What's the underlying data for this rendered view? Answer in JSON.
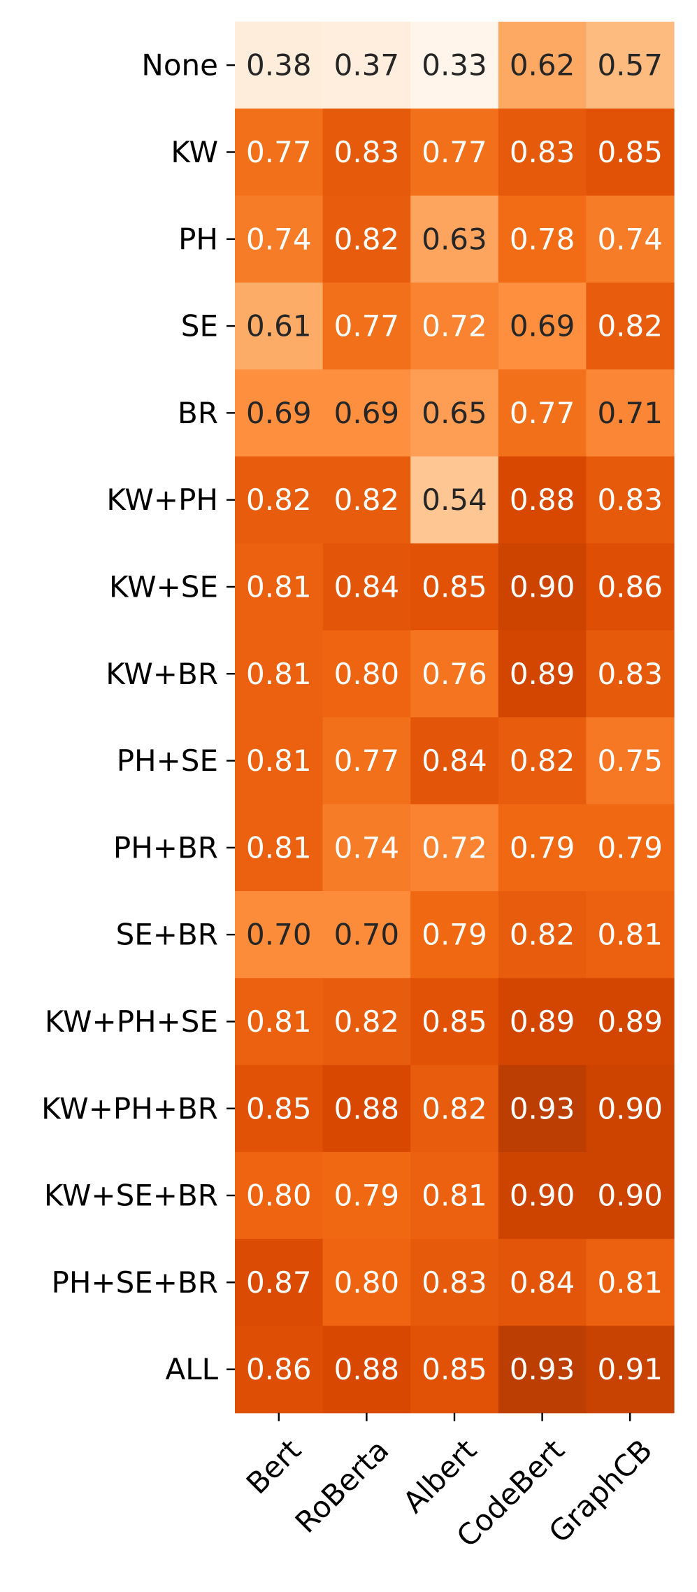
{
  "chart_data": {
    "type": "heatmap",
    "title": "",
    "xlabel": "",
    "ylabel": "",
    "columns": [
      "Bert",
      "RoBerta",
      "Albert",
      "CodeBert",
      "GraphCB"
    ],
    "rows": [
      "None",
      "KW",
      "PH",
      "SE",
      "BR",
      "KW+PH",
      "KW+SE",
      "KW+BR",
      "PH+SE",
      "PH+BR",
      "SE+BR",
      "KW+PH+SE",
      "KW+PH+BR",
      "KW+SE+BR",
      "PH+SE+BR",
      "ALL"
    ],
    "values": [
      [
        0.38,
        0.37,
        0.33,
        0.62,
        0.57
      ],
      [
        0.77,
        0.83,
        0.77,
        0.83,
        0.85
      ],
      [
        0.74,
        0.82,
        0.63,
        0.78,
        0.74
      ],
      [
        0.61,
        0.77,
        0.72,
        0.69,
        0.82
      ],
      [
        0.69,
        0.69,
        0.65,
        0.77,
        0.71
      ],
      [
        0.82,
        0.82,
        0.54,
        0.88,
        0.83
      ],
      [
        0.81,
        0.84,
        0.85,
        0.9,
        0.86
      ],
      [
        0.81,
        0.8,
        0.76,
        0.89,
        0.83
      ],
      [
        0.81,
        0.77,
        0.84,
        0.82,
        0.75
      ],
      [
        0.81,
        0.74,
        0.72,
        0.79,
        0.79
      ],
      [
        0.7,
        0.7,
        0.79,
        0.82,
        0.81
      ],
      [
        0.81,
        0.82,
        0.85,
        0.89,
        0.89
      ],
      [
        0.85,
        0.88,
        0.82,
        0.93,
        0.9
      ],
      [
        0.8,
        0.79,
        0.81,
        0.9,
        0.9
      ],
      [
        0.87,
        0.8,
        0.83,
        0.84,
        0.81
      ],
      [
        0.86,
        0.88,
        0.85,
        0.93,
        0.91
      ]
    ],
    "value_range": [
      0.33,
      0.93
    ],
    "colormap": "Oranges",
    "colorbar": false,
    "grid": false,
    "legend": "none"
  },
  "colors": {
    "text_dark": "#262626",
    "text_light": "#ffffff",
    "axis": "#000000"
  }
}
